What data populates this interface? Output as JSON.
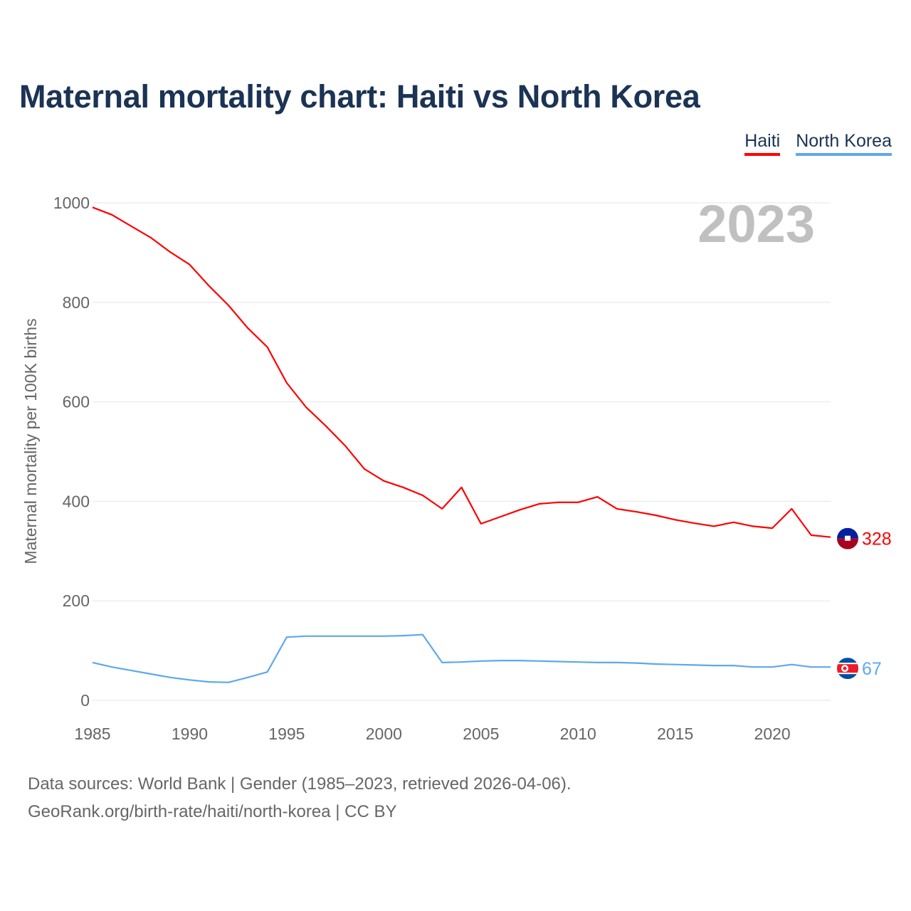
{
  "chart_data": {
    "type": "line",
    "title": "Maternal mortality chart: Haiti vs North Korea",
    "ylabel": "Maternal mortality per 100K births",
    "xlabel": "",
    "ylim": [
      0,
      1000
    ],
    "xlim": [
      1985,
      2023
    ],
    "yticks": [
      0,
      200,
      400,
      600,
      800,
      1000
    ],
    "xticks": [
      1985,
      1990,
      1995,
      2000,
      2005,
      2010,
      2015,
      2020
    ],
    "grid": true,
    "legend_position": "top-right",
    "year_label": "2023",
    "x": [
      1985,
      1986,
      1987,
      1988,
      1989,
      1990,
      1991,
      1992,
      1993,
      1994,
      1995,
      1996,
      1997,
      1998,
      1999,
      2000,
      2001,
      2002,
      2003,
      2004,
      2005,
      2006,
      2007,
      2008,
      2009,
      2010,
      2011,
      2012,
      2013,
      2014,
      2015,
      2016,
      2017,
      2018,
      2019,
      2020,
      2021,
      2022,
      2023
    ],
    "series": [
      {
        "name": "Haiti",
        "color": "#ff0000",
        "end_label": "328",
        "flag": "haiti-flag",
        "values": [
          991,
          976,
          953,
          930,
          901,
          876,
          833,
          794,
          748,
          710,
          638,
          589,
          552,
          512,
          465,
          441,
          428,
          412,
          385,
          428,
          355,
          369,
          383,
          395,
          398,
          398,
          409,
          385,
          379,
          372,
          363,
          356,
          350,
          358,
          350,
          346,
          385,
          332,
          328
        ]
      },
      {
        "name": "North Korea",
        "color": "#5ea8ec",
        "end_label": "67",
        "flag": "north-korea-flag",
        "values": [
          76,
          67,
          60,
          53,
          46,
          41,
          37,
          36,
          46,
          57,
          127,
          129,
          129,
          129,
          129,
          129,
          130,
          132,
          76,
          77,
          79,
          80,
          80,
          79,
          78,
          77,
          76,
          76,
          75,
          73,
          72,
          71,
          70,
          70,
          67,
          67,
          72,
          67,
          67
        ]
      }
    ]
  },
  "footer": {
    "line1": "Data sources: World Bank | Gender (1985–2023, retrieved 2026-04-06).",
    "line2": "GeoRank.org/birth-rate/haiti/north-korea | CC BY"
  }
}
